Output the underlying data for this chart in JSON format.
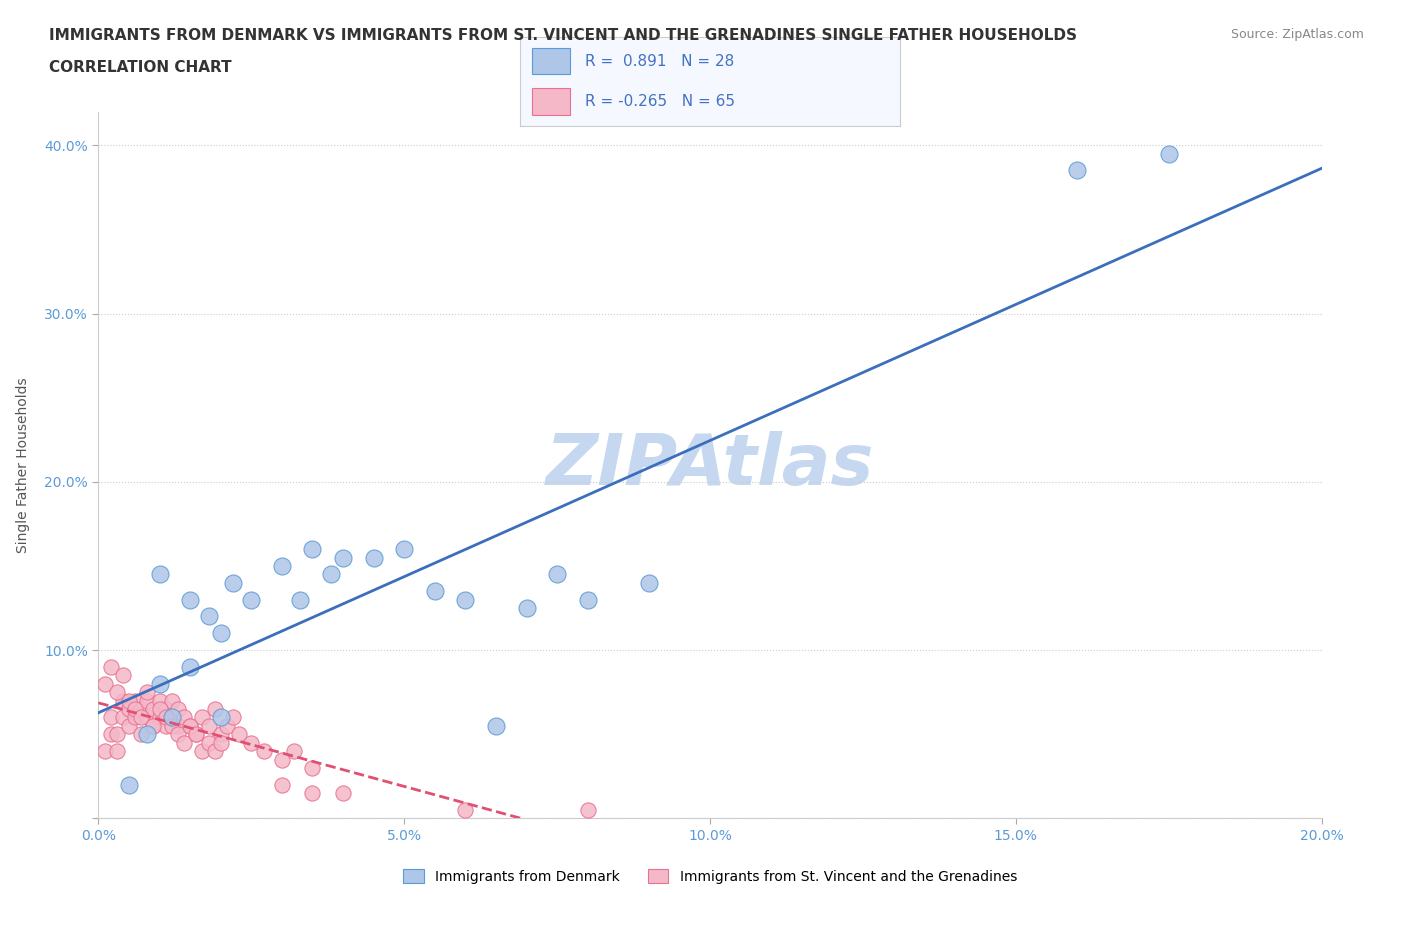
{
  "title_line1": "IMMIGRANTS FROM DENMARK VS IMMIGRANTS FROM ST. VINCENT AND THE GRENADINES SINGLE FATHER HOUSEHOLDS",
  "title_line2": "CORRELATION CHART",
  "source_text": "Source: ZipAtlas.com",
  "xlabel": "",
  "ylabel": "Single Father Households",
  "xlim": [
    0.0,
    0.2
  ],
  "ylim": [
    0.0,
    0.42
  ],
  "xticks": [
    0.0,
    0.05,
    0.1,
    0.15,
    0.2
  ],
  "yticks": [
    0.0,
    0.1,
    0.2,
    0.3,
    0.4
  ],
  "xtick_labels": [
    "0.0%",
    "5.0%",
    "10.0%",
    "15.0%",
    "20.0%"
  ],
  "ytick_labels": [
    "",
    "10.0%",
    "20.0%",
    "30.0%",
    "40.0%"
  ],
  "denmark_color": "#aec6e8",
  "denmark_edge_color": "#5b9bd5",
  "svgrenadines_color": "#f4b8c8",
  "svgrenadines_edge_color": "#e87090",
  "regression_denmark_color": "#3c6fbb",
  "regression_svg_color": "#e05070",
  "background_color": "#ffffff",
  "watermark_color": "#c5d8f0",
  "legend_r_denmark": "0.891",
  "legend_n_denmark": "28",
  "legend_r_svg": "-0.265",
  "legend_n_svg": "65",
  "denmark_x": [
    0.005,
    0.008,
    0.01,
    0.012,
    0.015,
    0.018,
    0.02,
    0.022,
    0.025,
    0.03,
    0.033,
    0.035,
    0.038,
    0.04,
    0.045,
    0.05,
    0.055,
    0.06,
    0.07,
    0.075,
    0.08,
    0.09,
    0.01,
    0.015,
    0.02,
    0.065,
    0.16,
    0.175
  ],
  "denmark_y": [
    0.02,
    0.05,
    0.08,
    0.06,
    0.09,
    0.12,
    0.11,
    0.14,
    0.13,
    0.15,
    0.13,
    0.16,
    0.145,
    0.155,
    0.155,
    0.16,
    0.135,
    0.13,
    0.125,
    0.145,
    0.13,
    0.14,
    0.145,
    0.13,
    0.06,
    0.055,
    0.385,
    0.395
  ],
  "svg_x": [
    0.001,
    0.002,
    0.002,
    0.003,
    0.003,
    0.004,
    0.004,
    0.005,
    0.005,
    0.006,
    0.006,
    0.007,
    0.007,
    0.008,
    0.008,
    0.009,
    0.009,
    0.01,
    0.01,
    0.011,
    0.011,
    0.012,
    0.012,
    0.013,
    0.013,
    0.014,
    0.015,
    0.016,
    0.017,
    0.018,
    0.019,
    0.02,
    0.021,
    0.022,
    0.023,
    0.025,
    0.027,
    0.03,
    0.032,
    0.035,
    0.001,
    0.002,
    0.003,
    0.004,
    0.005,
    0.006,
    0.007,
    0.008,
    0.009,
    0.01,
    0.011,
    0.012,
    0.013,
    0.014,
    0.015,
    0.016,
    0.017,
    0.018,
    0.019,
    0.02,
    0.03,
    0.035,
    0.04,
    0.06,
    0.08
  ],
  "svg_y": [
    0.04,
    0.05,
    0.06,
    0.04,
    0.05,
    0.06,
    0.07,
    0.055,
    0.065,
    0.06,
    0.07,
    0.05,
    0.065,
    0.06,
    0.07,
    0.065,
    0.055,
    0.06,
    0.07,
    0.065,
    0.055,
    0.06,
    0.07,
    0.065,
    0.055,
    0.06,
    0.055,
    0.05,
    0.06,
    0.055,
    0.065,
    0.05,
    0.055,
    0.06,
    0.05,
    0.045,
    0.04,
    0.035,
    0.04,
    0.03,
    0.08,
    0.09,
    0.075,
    0.085,
    0.07,
    0.065,
    0.06,
    0.075,
    0.055,
    0.065,
    0.06,
    0.055,
    0.05,
    0.045,
    0.055,
    0.05,
    0.04,
    0.045,
    0.04,
    0.045,
    0.02,
    0.015,
    0.015,
    0.005,
    0.005
  ]
}
